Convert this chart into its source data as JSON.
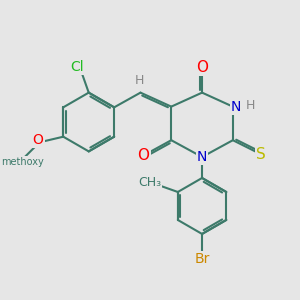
{
  "bg_color": "#e6e6e6",
  "bond_color": "#3d7a6a",
  "bond_width": 1.5,
  "dbo": 0.07,
  "atom_colors": {
    "O": "#ff0000",
    "N": "#0000cc",
    "S": "#bbbb00",
    "Cl": "#22bb22",
    "Br": "#cc8800",
    "H": "#888888",
    "C": "#3d7a6a"
  },
  "font_size": 10,
  "fig_size": [
    3.0,
    3.0
  ],
  "dpi": 100
}
